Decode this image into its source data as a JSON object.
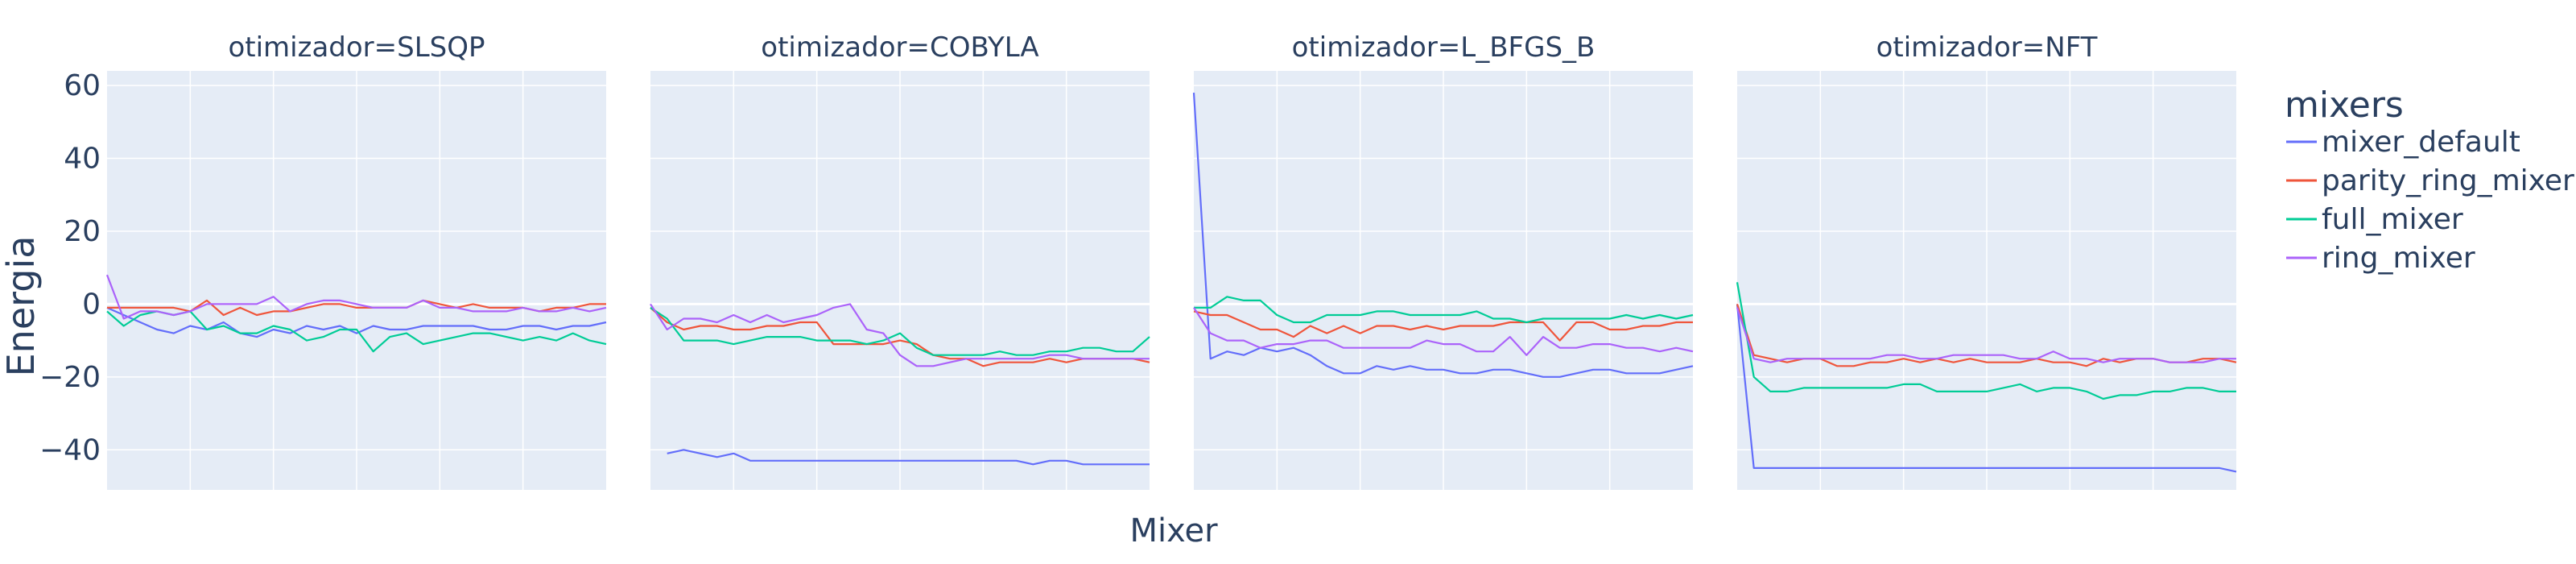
{
  "colors": {
    "plot_bg": "#e5ecf6",
    "grid": "#ffffff",
    "text": "#2a3f5f",
    "mixer_default": "#636efa",
    "parity_ring_mixer": "#ef553b",
    "full_mixer": "#00cc96",
    "ring_mixer": "#ab63fa"
  },
  "chart_data": {
    "type": "line",
    "xlabel": "Mixer",
    "ylabel": "Energia",
    "ylim": [
      -51,
      64
    ],
    "yticks": [
      60,
      40,
      20,
      0,
      -20,
      -40
    ],
    "ytick_labels": [
      "60",
      "40",
      "20",
      "0",
      "−20",
      "−40"
    ],
    "x_points": 31,
    "grid": true,
    "legend": {
      "title": "mixers",
      "placement": "right"
    },
    "series_names": [
      "mixer_default",
      "parity_ring_mixer",
      "full_mixer",
      "ring_mixer"
    ],
    "panels": [
      {
        "title": "otimizador=SLSQP",
        "series": [
          {
            "name": "mixer_default",
            "values": [
              -1,
              -3,
              -5,
              -7,
              -8,
              -6,
              -7,
              -5,
              -8,
              -9,
              -7,
              -8,
              -6,
              -7,
              -6,
              -8,
              -6,
              -7,
              -7,
              -6,
              -6,
              -6,
              -6,
              -7,
              -7,
              -6,
              -6,
              -7,
              -6,
              -6,
              -5
            ]
          },
          {
            "name": "parity_ring_mixer",
            "values": [
              -1,
              -1,
              -1,
              -1,
              -1,
              -2,
              1,
              -3,
              -1,
              -3,
              -2,
              -2,
              -1,
              0,
              0,
              -1,
              -1,
              -1,
              -1,
              1,
              0,
              -1,
              0,
              -1,
              -1,
              -1,
              -2,
              -1,
              -1,
              0,
              0
            ]
          },
          {
            "name": "full_mixer",
            "values": [
              -2,
              -6,
              -3,
              -2,
              -3,
              -2,
              -7,
              -6,
              -8,
              -8,
              -6,
              -7,
              -10,
              -9,
              -7,
              -7,
              -13,
              -9,
              -8,
              -11,
              -10,
              -9,
              -8,
              -8,
              -9,
              -10,
              -9,
              -10,
              -8,
              -10,
              -11
            ]
          },
          {
            "name": "ring_mixer",
            "values": [
              8,
              -4,
              -2,
              -2,
              -3,
              -2,
              0,
              0,
              0,
              0,
              2,
              -2,
              0,
              1,
              1,
              0,
              -1,
              -1,
              -1,
              1,
              -1,
              -1,
              -2,
              -2,
              -2,
              -1,
              -2,
              -2,
              -1,
              -2,
              -1
            ]
          }
        ]
      },
      {
        "title": "otimizador=COBYLA",
        "series": [
          {
            "name": "mixer_default",
            "values": [
              null,
              -41,
              -40,
              -41,
              -42,
              -41,
              -43,
              -43,
              -43,
              -43,
              -43,
              -43,
              -43,
              -43,
              -43,
              -43,
              -43,
              -43,
              -43,
              -43,
              -43,
              -43,
              -43,
              -44,
              -43,
              -43,
              -44,
              -44,
              -44,
              -44,
              -44
            ]
          },
          {
            "name": "parity_ring_mixer",
            "values": [
              -1,
              -5,
              -7,
              -6,
              -6,
              -7,
              -7,
              -6,
              -6,
              -5,
              -5,
              -11,
              -11,
              -11,
              -11,
              -10,
              -11,
              -14,
              -15,
              -15,
              -17,
              -16,
              -16,
              -16,
              -15,
              -16,
              -15,
              -15,
              -15,
              -15,
              -16
            ]
          },
          {
            "name": "full_mixer",
            "values": [
              -1,
              -4,
              -10,
              -10,
              -10,
              -11,
              -10,
              -9,
              -9,
              -9,
              -10,
              -10,
              -10,
              -11,
              -10,
              -8,
              -12,
              -14,
              -14,
              -14,
              -14,
              -13,
              -14,
              -14,
              -13,
              -13,
              -12,
              -12,
              -13,
              -13,
              -9
            ]
          },
          {
            "name": "ring_mixer",
            "values": [
              0,
              -7,
              -4,
              -4,
              -5,
              -3,
              -5,
              -3,
              -5,
              -4,
              -3,
              -1,
              0,
              -7,
              -8,
              -14,
              -17,
              -17,
              -16,
              -15,
              -15,
              -15,
              -15,
              -15,
              -14,
              -14,
              -15,
              -15,
              -15,
              -15,
              -15
            ]
          }
        ]
      },
      {
        "title": "otimizador=L_BFGS_B",
        "series": [
          {
            "name": "mixer_default",
            "values": [
              58,
              -15,
              -13,
              -14,
              -12,
              -13,
              -12,
              -14,
              -17,
              -19,
              -19,
              -17,
              -18,
              -17,
              -18,
              -18,
              -19,
              -19,
              -18,
              -18,
              -19,
              -20,
              -20,
              -19,
              -18,
              -18,
              -19,
              -19,
              -19,
              -18,
              -17
            ]
          },
          {
            "name": "parity_ring_mixer",
            "values": [
              -2,
              -3,
              -3,
              -5,
              -7,
              -7,
              -9,
              -6,
              -8,
              -6,
              -8,
              -6,
              -6,
              -7,
              -6,
              -7,
              -6,
              -6,
              -6,
              -5,
              -5,
              -5,
              -10,
              -5,
              -5,
              -7,
              -7,
              -6,
              -6,
              -5,
              -5
            ]
          },
          {
            "name": "full_mixer",
            "values": [
              -1,
              -1,
              2,
              1,
              1,
              -3,
              -5,
              -5,
              -3,
              -3,
              -3,
              -2,
              -2,
              -3,
              -3,
              -3,
              -3,
              -2,
              -4,
              -4,
              -5,
              -4,
              -4,
              -4,
              -4,
              -4,
              -3,
              -4,
              -3,
              -4,
              -3
            ]
          },
          {
            "name": "ring_mixer",
            "values": [
              -1,
              -8,
              -10,
              -10,
              -12,
              -11,
              -11,
              -10,
              -10,
              -12,
              -12,
              -12,
              -12,
              -12,
              -10,
              -11,
              -11,
              -13,
              -13,
              -9,
              -14,
              -9,
              -12,
              -12,
              -11,
              -11,
              -12,
              -12,
              -13,
              -12,
              -13
            ]
          }
        ]
      },
      {
        "title": "otimizador=NFT",
        "series": [
          {
            "name": "mixer_default",
            "values": [
              0,
              -45,
              -45,
              -45,
              -45,
              -45,
              -45,
              -45,
              -45,
              -45,
              -45,
              -45,
              -45,
              -45,
              -45,
              -45,
              -45,
              -45,
              -45,
              -45,
              -45,
              -45,
              -45,
              -45,
              -45,
              -45,
              -45,
              -45,
              -45,
              -45,
              -46
            ]
          },
          {
            "name": "parity_ring_mixer",
            "values": [
              0,
              -14,
              -15,
              -16,
              -15,
              -15,
              -17,
              -17,
              -16,
              -16,
              -15,
              -16,
              -15,
              -16,
              -15,
              -16,
              -16,
              -16,
              -15,
              -16,
              -16,
              -17,
              -15,
              -16,
              -15,
              -15,
              -16,
              -16,
              -15,
              -15,
              -16
            ]
          },
          {
            "name": "full_mixer",
            "values": [
              6,
              -20,
              -24,
              -24,
              -23,
              -23,
              -23,
              -23,
              -23,
              -23,
              -22,
              -22,
              -24,
              -24,
              -24,
              -24,
              -23,
              -22,
              -24,
              -23,
              -23,
              -24,
              -26,
              -25,
              -25,
              -24,
              -24,
              -23,
              -23,
              -24,
              -24
            ]
          },
          {
            "name": "ring_mixer",
            "values": [
              -1,
              -15,
              -16,
              -15,
              -15,
              -15,
              -15,
              -15,
              -15,
              -14,
              -14,
              -15,
              -15,
              -14,
              -14,
              -14,
              -14,
              -15,
              -15,
              -13,
              -15,
              -15,
              -16,
              -15,
              -15,
              -15,
              -16,
              -16,
              -16,
              -15,
              -15
            ]
          }
        ]
      }
    ]
  }
}
